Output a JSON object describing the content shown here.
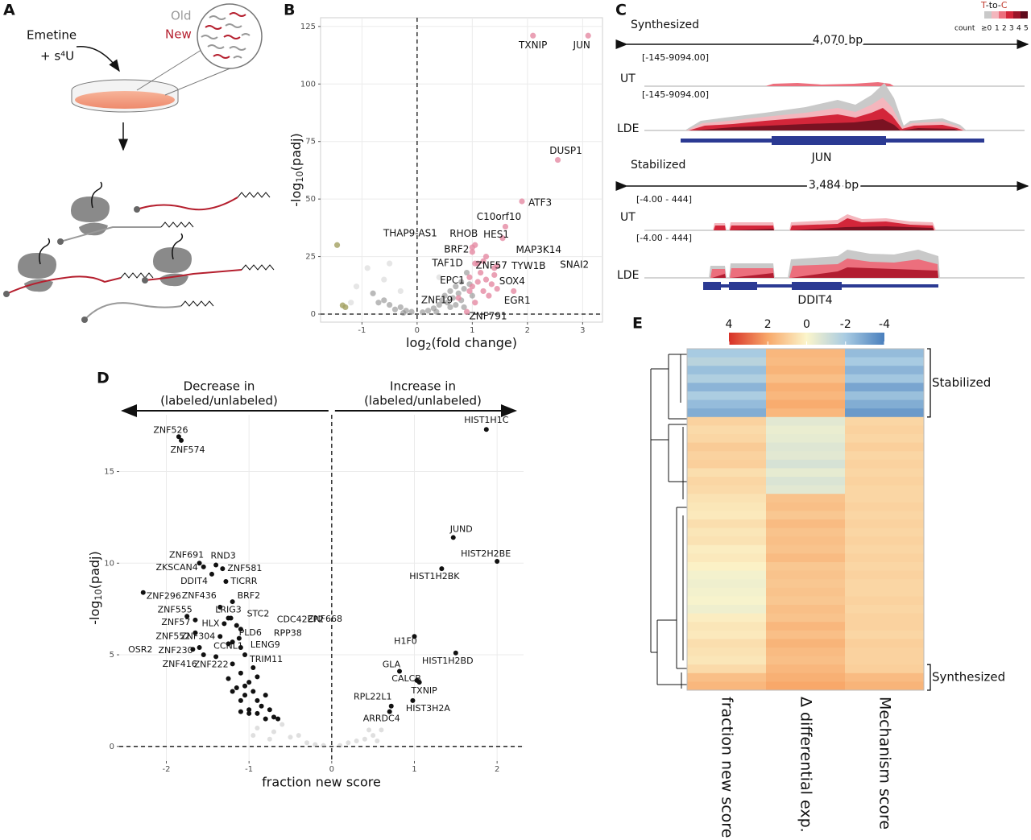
{
  "panels": {
    "A": {
      "letter": "A",
      "treatment": [
        "Emetine",
        "+ s⁴U"
      ],
      "legend": [
        "Old",
        "New"
      ]
    },
    "C": {
      "letter": "C",
      "legend_title": [
        "T",
        "-to-",
        "C"
      ],
      "legend_count": "count",
      "legend_levels": [
        "≥0",
        "1",
        "2",
        "3",
        "4",
        "5"
      ],
      "tracks": [
        {
          "group": "Synthesized",
          "span": "4,070 bp",
          "rows": [
            {
              "range": "[-145-9094.00]",
              "label": "UT"
            },
            {
              "range": "[-145-9094.00]",
              "label": "LDE"
            }
          ],
          "gene": "JUN"
        },
        {
          "group": "Stabilized",
          "span": "3,484 bp",
          "rows": [
            {
              "range": "[-4.00 - 444]",
              "label": "UT"
            },
            {
              "range": "[-4.00 - 444]",
              "label": "LDE"
            }
          ],
          "gene": "DDIT4"
        }
      ]
    }
  },
  "chart_data": [
    {
      "type": "scatter",
      "panel": "B",
      "xlabel": [
        "log",
        "2",
        "(fold change)"
      ],
      "ylabel": [
        "-log",
        "10",
        "(padj)"
      ],
      "xlim": [
        -1.75,
        3.36
      ],
      "ylim": [
        -3.5,
        128.8
      ],
      "xticks": [
        -1,
        0,
        1,
        2,
        3
      ],
      "yticks": [
        0,
        25,
        50,
        75,
        100,
        125
      ],
      "grid": true,
      "reference_lines": {
        "x": 0,
        "y": 0
      },
      "series": [
        {
          "color": "#d0d0d088",
          "x": [
            -0.9,
            -0.6,
            -1.1,
            -0.5,
            -0.3,
            -1.2,
            0.4
          ],
          "values": [
            20,
            15,
            12,
            22,
            10,
            5,
            16
          ]
        },
        {
          "color": "#8c8c8c99",
          "x": [
            -0.4,
            -0.3,
            -0.2,
            -0.1,
            0.1,
            0.2,
            0.3,
            0.4,
            0.45,
            0.5,
            0.55,
            0.6,
            0.65,
            0.7,
            0.75,
            0.8,
            0.85,
            0.9,
            0.95,
            0.7,
            0.8,
            0.6,
            -0.5,
            -0.6,
            -0.8,
            -0.7,
            -0.25,
            0.35,
            1.0,
            0.85
          ],
          "values": [
            2,
            3,
            1.5,
            1,
            0.8,
            1.5,
            2.5,
            4,
            6,
            8,
            5,
            10,
            7,
            12,
            9,
            14,
            11,
            18,
            13,
            4,
            6,
            3,
            4,
            6,
            9,
            5,
            0.5,
            1,
            8,
            3
          ]
        },
        {
          "color": "#a3a060cc",
          "x": [
            -1.45,
            -1.3,
            -1.35
          ],
          "values": [
            30,
            3,
            3.8
          ]
        },
        {
          "color": "#e58aa3cc",
          "x": [
            1.0,
            1.1,
            1.2,
            1.3,
            1.15,
            1.35,
            1.45,
            0.95,
            1.25,
            1.4,
            1.05
          ],
          "values": [
            12,
            14,
            10,
            8,
            18,
            13,
            11,
            10,
            15,
            20,
            5
          ]
        },
        {
          "color": "#e58aa3cc",
          "labels": [
            "TXNIP",
            "JUN",
            "DUSP1",
            "ATF3",
            "C10orf10",
            "HES1",
            "MAP3K14",
            "TYW1B",
            "SNAI2",
            "SOX4",
            "EGR1",
            "ZNF57",
            "TAF1D",
            "BRF2",
            "RHOB",
            "THAP9-AS1",
            "EPC1",
            "ZNF19",
            "ZNF791"
          ],
          "x": [
            2.1,
            3.1,
            2.55,
            1.9,
            1.6,
            1.55,
            1.25,
            1.2,
            1.45,
            1.4,
            1.75,
            1.1,
            1.05,
            1.0,
            1.05,
            1.0,
            0.95,
            0.75,
            0.9
          ],
          "values": [
            121,
            121,
            67,
            49,
            38,
            33,
            25,
            23,
            21,
            17,
            10,
            22,
            22,
            27,
            30,
            29,
            16,
            7,
            1
          ]
        }
      ]
    },
    {
      "type": "scatter",
      "panel": "D",
      "xlabel": "fraction new score",
      "ylabel": [
        "-log",
        "10",
        "(padj)"
      ],
      "annotations": [
        "Decrease in",
        "(labeled/unlabeled)",
        "Increase in",
        "(labeled/unlabeled)"
      ],
      "xlim": [
        -2.57,
        2.32
      ],
      "ylim": [
        -0.8,
        18.1
      ],
      "xticks": [
        -2,
        -1,
        0,
        1,
        2
      ],
      "yticks": [
        0,
        5,
        10,
        15
      ],
      "grid": true,
      "reference_lines": {
        "x": 0,
        "y": 0
      },
      "series": [
        {
          "color": "#9e9e9e55",
          "x": [
            -0.9,
            -0.7,
            -0.5,
            -0.3,
            -0.1,
            0.1,
            0.3,
            0.5,
            0.6,
            -0.8,
            -0.6,
            -0.4,
            0.2,
            0.4,
            -1.0,
            0.55,
            -0.2,
            0.45,
            -0.75,
            -0.95
          ],
          "values": [
            1,
            0.8,
            0.5,
            0.2,
            0.05,
            0.05,
            0.3,
            0.6,
            0.9,
            1.5,
            1.2,
            0.6,
            0.2,
            0.4,
            2,
            0.3,
            0.1,
            0.9,
            0.4,
            0.6
          ]
        },
        {
          "color": "#111111",
          "x": [
            -1.2,
            -1.1,
            -1.0,
            -0.9,
            -0.8,
            -1.0,
            -1.1,
            -0.9,
            -0.85,
            -0.7,
            -1.15,
            -1.05,
            -0.95,
            -1.0,
            -0.75,
            -1.2,
            -0.9,
            -0.8,
            -1.1,
            -0.65,
            -1.25,
            -0.95,
            -1.05
          ],
          "values": [
            3,
            2.5,
            2,
            1.8,
            1.5,
            3.5,
            4,
            2.5,
            2.2,
            1.6,
            3.2,
            2.8,
            3,
            1.8,
            2,
            4.5,
            3.8,
            2.8,
            1.9,
            1.5,
            3.7,
            4.3,
            3.3
          ]
        },
        {
          "color": "#111111",
          "labels": [
            "HIST1H1C",
            "ZNF526",
            "ZNF574",
            "JUND",
            "HIST2H2BE",
            "HIST1H2BK",
            "ZNF691",
            "RND3",
            "ZKSCAN4",
            "ZNF581",
            "DDIT4",
            "TICRR",
            "ZNF296",
            "ZNF436",
            "BRF2",
            "ZNF555",
            "LRIG3",
            "STC2",
            "ZNF57",
            "HLX",
            "CDC42EP2",
            "ZNF668",
            "ZNF552",
            "ZNF304",
            "PLD6",
            "RPP38",
            "ZNF230",
            "OSR2",
            "CCNL1",
            "LENG9",
            "TRIM11",
            "ZNF416",
            "ZNF222",
            "H1F0",
            "HIST1H2BD",
            "GLA",
            "CALCB",
            "TXNIP",
            "HIST3H2A",
            "RPL22L1",
            "ARRDC4"
          ],
          "x": [
            1.87,
            -1.85,
            -1.82,
            1.47,
            2.0,
            1.33,
            -1.6,
            -1.4,
            -1.55,
            -1.32,
            -1.45,
            -1.28,
            -2.28,
            -1.35,
            -1.2,
            -1.75,
            -1.25,
            -1.22,
            -1.65,
            -1.3,
            -1.15,
            -1.1,
            -1.65,
            -1.35,
            -1.2,
            -1.12,
            -1.6,
            -1.68,
            -1.25,
            -1.1,
            -1.05,
            -1.55,
            -1.4,
            1.0,
            1.5,
            0.82,
            1.03,
            1.06,
            0.98,
            0.72,
            0.7
          ],
          "values": [
            17.3,
            16.9,
            16.7,
            11.4,
            10.1,
            9.7,
            10.0,
            9.9,
            9.8,
            9.7,
            9.4,
            9.0,
            8.4,
            7.6,
            7.9,
            7.1,
            7.0,
            7.0,
            6.9,
            6.7,
            6.6,
            6.4,
            6.2,
            6.0,
            5.7,
            5.9,
            5.4,
            5.3,
            5.6,
            5.4,
            5.0,
            5.0,
            4.9,
            6.0,
            5.1,
            4.1,
            3.6,
            3.5,
            2.5,
            2.2,
            1.9
          ]
        }
      ]
    },
    {
      "type": "heatmap",
      "panel": "E",
      "columns": [
        "fraction new score",
        "Δ differential exp.",
        "Mechanism score"
      ],
      "group_labels": [
        "Stabilized",
        "Synthesized"
      ],
      "colorbar_ticks": [
        4,
        2,
        0,
        -2,
        -4
      ],
      "colorbar_colors": [
        "#d73027",
        "#f8a86a",
        "#fbf5cb",
        "#a8cbe2",
        "#4a7fbd"
      ],
      "values": [
        [
          -2,
          1.6,
          -2.4
        ],
        [
          -1.6,
          1.5,
          -2
        ],
        [
          -2.3,
          1.7,
          -2.6
        ],
        [
          -1.8,
          1.4,
          -2.1
        ],
        [
          -2.6,
          1.8,
          -3
        ],
        [
          -1.9,
          1.6,
          -2.3
        ],
        [
          -2.4,
          1.9,
          -2.8
        ],
        [
          -2.8,
          1.6,
          -3.3
        ],
        [
          0.9,
          -0.6,
          0.8
        ],
        [
          0.7,
          -0.4,
          0.9
        ],
        [
          0.8,
          -0.5,
          0.8
        ],
        [
          1.1,
          -0.7,
          1
        ],
        [
          0.9,
          -0.6,
          0.8
        ],
        [
          1.0,
          -0.9,
          0.9
        ],
        [
          0.6,
          -0.5,
          0.8
        ],
        [
          0.8,
          -0.8,
          0.9
        ],
        [
          0.7,
          -0.6,
          0.8
        ],
        [
          0.5,
          1.3,
          0.8
        ],
        [
          0.4,
          1.4,
          0.9
        ],
        [
          0.3,
          1.2,
          0.8
        ],
        [
          0.6,
          1.5,
          0.9
        ],
        [
          0.4,
          1.3,
          0.8
        ],
        [
          0.5,
          1.4,
          0.9
        ],
        [
          0.2,
          1.3,
          0.8
        ],
        [
          0.3,
          1.5,
          0.9
        ],
        [
          0.1,
          1.2,
          0.8
        ],
        [
          -0.2,
          1.3,
          0.9
        ],
        [
          -0.3,
          1.2,
          0.8
        ],
        [
          -0.2,
          1.3,
          0.8
        ],
        [
          -0.1,
          1.2,
          0.9
        ],
        [
          -0.3,
          1.4,
          0.8
        ],
        [
          0.2,
          1.3,
          0.9
        ],
        [
          0.4,
          1.6,
          0.9
        ],
        [
          0.3,
          1.4,
          0.8
        ],
        [
          0.6,
          1.7,
          1
        ],
        [
          0.5,
          1.5,
          0.9
        ],
        [
          0.4,
          1.4,
          0.9
        ],
        [
          0.7,
          1.6,
          1
        ],
        [
          1.4,
          1.8,
          1.5
        ],
        [
          1.6,
          2.0,
          1.7
        ]
      ]
    }
  ]
}
